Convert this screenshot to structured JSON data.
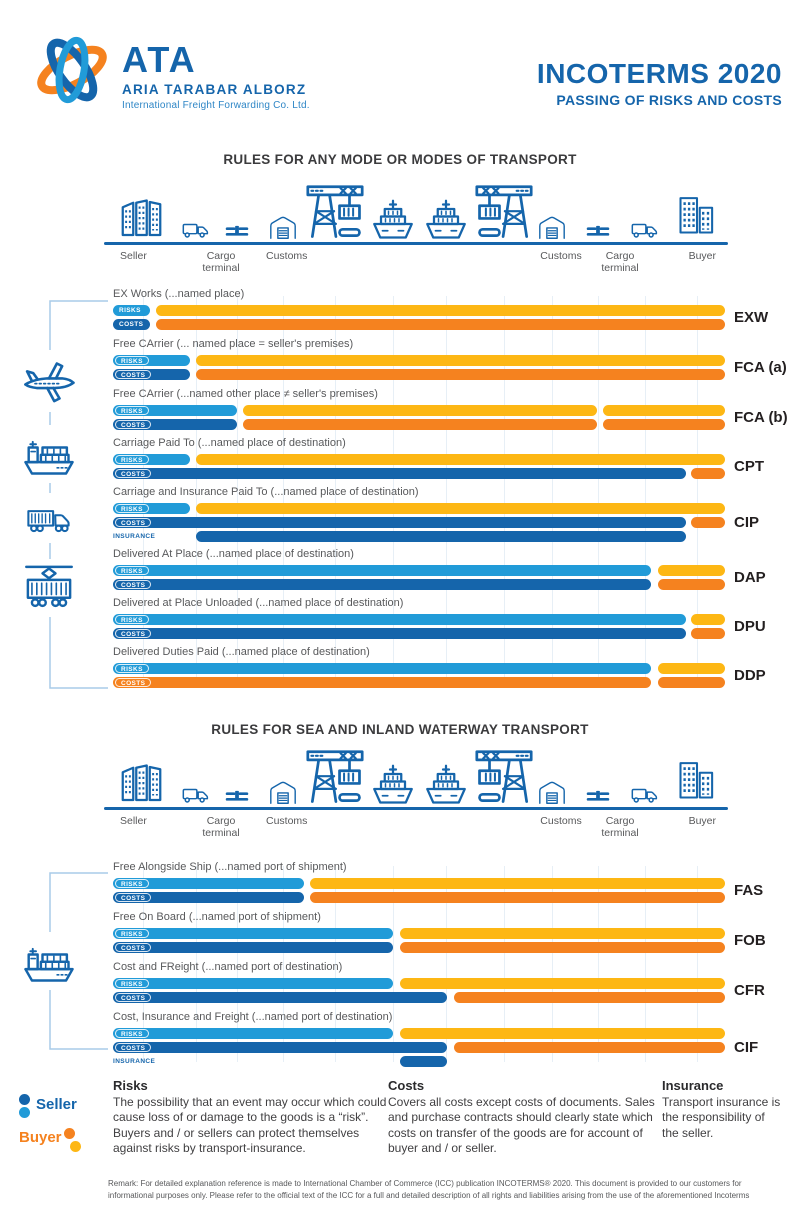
{
  "header": {
    "logo": {
      "acronym": "ATA",
      "company": "ARIA TARABAR ALBORZ",
      "tagline": "International Freight Forwarding Co. Ltd."
    },
    "title": "INCOTERMS 2020",
    "subtitle": "PASSING OF RISKS AND COSTS"
  },
  "colors": {
    "seller_risk": "#219bd8",
    "seller_cost": "#1565ab",
    "buyer_risk": "#fdb714",
    "buyer_cost": "#f5821f",
    "insurance_bar": "#1565ab",
    "brand_blue": "#1565ab",
    "accent_orange": "#f5821f",
    "accent_yellow": "#fdb714"
  },
  "timeline": {
    "icons": [
      "factory",
      "truck",
      "customs-barrier",
      "warehouse",
      "container-crane",
      "cargo-ship-front",
      "cargo-ship-front",
      "container-crane-flipped",
      "warehouse",
      "customs-barrier",
      "truck",
      "office-building"
    ],
    "labels": [
      "Seller",
      "Cargo terminal",
      "Customs",
      "Customs",
      "Cargo terminal",
      "Buyer"
    ]
  },
  "sections": [
    {
      "title": "RULES FOR ANY MODE OR MODES OF TRANSPORT",
      "side_icons": [
        "airplane",
        "cargo-ship",
        "container-truck",
        "freight-train"
      ],
      "terms": [
        {
          "code": "EXW",
          "title": "EX Works (...named place)",
          "bars": [
            {
              "label": "RISKS",
              "segments": [
                [
                  "seller_risk",
                  0,
                  6.1
                ],
                [
                  "buyer_risk",
                  7,
                  100
                ]
              ]
            },
            {
              "label": "COSTS",
              "segments": [
                [
                  "seller_cost",
                  0,
                  6.1
                ],
                [
                  "buyer_cost",
                  7,
                  100
                ]
              ]
            }
          ]
        },
        {
          "code": "FCA (a)",
          "title": "Free CArrier (... named place = seller's premises)",
          "bars": [
            {
              "label": "RISKS",
              "segments": [
                [
                  "seller_risk",
                  0,
                  12.6
                ],
                [
                  "buyer_risk",
                  13.5,
                  100
                ]
              ]
            },
            {
              "label": "COSTS",
              "segments": [
                [
                  "seller_cost",
                  0,
                  12.6
                ],
                [
                  "buyer_cost",
                  13.5,
                  100
                ]
              ]
            }
          ]
        },
        {
          "code": "FCA (b)",
          "title": "Free CArrier (...named other place ≠ seller's premises)",
          "bars": [
            {
              "label": "RISKS",
              "segments": [
                [
                  "seller_risk",
                  0,
                  20.3
                ],
                [
                  "buyer_risk",
                  21.2,
                  79.1
                ],
                [
                  "buyer_risk",
                  80.1,
                  100
                ]
              ]
            },
            {
              "label": "COSTS",
              "segments": [
                [
                  "seller_cost",
                  0,
                  20.3
                ],
                [
                  "buyer_cost",
                  21.2,
                  79.1
                ],
                [
                  "buyer_cost",
                  80.1,
                  100
                ]
              ]
            }
          ]
        },
        {
          "code": "CPT",
          "title": "Carriage Paid To (...named place of destination)",
          "bars": [
            {
              "label": "RISKS",
              "segments": [
                [
                  "seller_risk",
                  0,
                  12.6
                ],
                [
                  "buyer_risk",
                  13.5,
                  100
                ]
              ]
            },
            {
              "label": "COSTS",
              "segments": [
                [
                  "seller_cost",
                  0,
                  93.6
                ],
                [
                  "buyer_cost",
                  94.5,
                  100
                ]
              ]
            }
          ]
        },
        {
          "code": "CIP",
          "title": "Carriage and Insurance Paid To (...named place of destination)",
          "bars": [
            {
              "label": "RISKS",
              "segments": [
                [
                  "seller_risk",
                  0,
                  12.6
                ],
                [
                  "buyer_risk",
                  13.5,
                  100
                ]
              ]
            },
            {
              "label": "COSTS",
              "segments": [
                [
                  "seller_cost",
                  0,
                  93.6
                ],
                [
                  "buyer_cost",
                  94.5,
                  100
                ]
              ]
            },
            {
              "label": "INSURANCE",
              "segments": [
                [
                  "insurance_bar",
                  13.5,
                  93.6
                ]
              ]
            }
          ]
        },
        {
          "code": "DAP",
          "title": "Delivered At Place (...named place of destination)",
          "bars": [
            {
              "label": "RISKS",
              "segments": [
                [
                  "seller_risk",
                  0,
                  87.9
                ],
                [
                  "buyer_risk",
                  89.1,
                  100
                ]
              ]
            },
            {
              "label": "COSTS",
              "segments": [
                [
                  "seller_cost",
                  0,
                  87.9
                ],
                [
                  "buyer_cost",
                  89.1,
                  100
                ]
              ]
            }
          ]
        },
        {
          "code": "DPU",
          "title": "Delivered at Place Unloaded (...named place of destination)",
          "bars": [
            {
              "label": "RISKS",
              "segments": [
                [
                  "seller_risk",
                  0,
                  93.6
                ],
                [
                  "buyer_risk",
                  94.5,
                  100
                ]
              ]
            },
            {
              "label": "COSTS",
              "segments": [
                [
                  "seller_cost",
                  0,
                  93.6
                ],
                [
                  "buyer_cost",
                  94.5,
                  100
                ]
              ]
            }
          ]
        },
        {
          "code": "DDP",
          "title": "Delivered Duties Paid (...named place of destination)",
          "bars": [
            {
              "label": "RISKS",
              "segments": [
                [
                  "seller_risk",
                  0,
                  87.9
                ],
                [
                  "buyer_risk",
                  89.1,
                  100
                ]
              ]
            },
            {
              "label": "COSTS",
              "segments": [
                [
                  "buyer_cost",
                  0,
                  87.9
                ],
                [
                  "buyer_cost",
                  89.1,
                  100
                ]
              ]
            }
          ]
        }
      ]
    },
    {
      "title": "RULES FOR SEA AND INLAND WATERWAY TRANSPORT",
      "side_icons": [
        "cargo-ship"
      ],
      "terms": [
        {
          "code": "FAS",
          "title": "Free Alongside Ship (...named port of shipment)",
          "bars": [
            {
              "label": "RISKS",
              "segments": [
                [
                  "seller_risk",
                  0,
                  31.2
                ],
                [
                  "buyer_risk",
                  32.2,
                  100
                ]
              ]
            },
            {
              "label": "COSTS",
              "segments": [
                [
                  "seller_cost",
                  0,
                  31.2
                ],
                [
                  "buyer_cost",
                  32.2,
                  100
                ]
              ]
            }
          ]
        },
        {
          "code": "FOB",
          "title": "Free On Board (...named port of shipment)",
          "bars": [
            {
              "label": "RISKS",
              "segments": [
                [
                  "seller_risk",
                  0,
                  45.8
                ],
                [
                  "buyer_risk",
                  46.9,
                  100
                ]
              ]
            },
            {
              "label": "COSTS",
              "segments": [
                [
                  "seller_cost",
                  0,
                  45.8
                ],
                [
                  "buyer_cost",
                  46.9,
                  100
                ]
              ]
            }
          ]
        },
        {
          "code": "CFR",
          "title": "Cost and FReight (...named port of destination)",
          "bars": [
            {
              "label": "RISKS",
              "segments": [
                [
                  "seller_risk",
                  0,
                  45.8
                ],
                [
                  "buyer_risk",
                  46.9,
                  100
                ]
              ]
            },
            {
              "label": "COSTS",
              "segments": [
                [
                  "seller_cost",
                  0,
                  54.6
                ],
                [
                  "buyer_cost",
                  55.7,
                  100
                ]
              ]
            }
          ]
        },
        {
          "code": "CIF",
          "title": "Cost, Insurance and Freight (...named port of destination)",
          "bars": [
            {
              "label": "RISKS",
              "segments": [
                [
                  "seller_risk",
                  0,
                  45.8
                ],
                [
                  "buyer_risk",
                  46.9,
                  100
                ]
              ]
            },
            {
              "label": "COSTS",
              "segments": [
                [
                  "seller_cost",
                  0,
                  54.6
                ],
                [
                  "buyer_cost",
                  55.7,
                  100
                ]
              ]
            },
            {
              "label": "INSURANCE",
              "segments": [
                [
                  "insurance_bar",
                  46.9,
                  54.6
                ]
              ]
            }
          ]
        }
      ]
    }
  ],
  "legend": {
    "seller": "Seller",
    "buyer": "Buyer"
  },
  "definitions": [
    {
      "heading": "Risks",
      "body": "The possibility that an event may occur which could cause loss of or damage to the goods is a “risk”. Buyers and / or sellers can protect themselves against risks by transport-insurance."
    },
    {
      "heading": "Costs",
      "body": "Covers all costs except costs of documents. Sales and purchase contracts should clearly state which costs on transfer of the goods are for account of buyer and / or seller."
    },
    {
      "heading": "Insurance",
      "body": "Transport insurance is the responsibility of the seller."
    }
  ],
  "remark": "Remark: For detailed explanation reference is made to International Chamber of Commerce (ICC) publication INCOTERMS® 2020. This document is provided to our customers for informational purposes only. Please refer to the official text of the ICC for a full and detailed description of all rights and liabilities arising from the use of the aforementioned Incoterms"
}
